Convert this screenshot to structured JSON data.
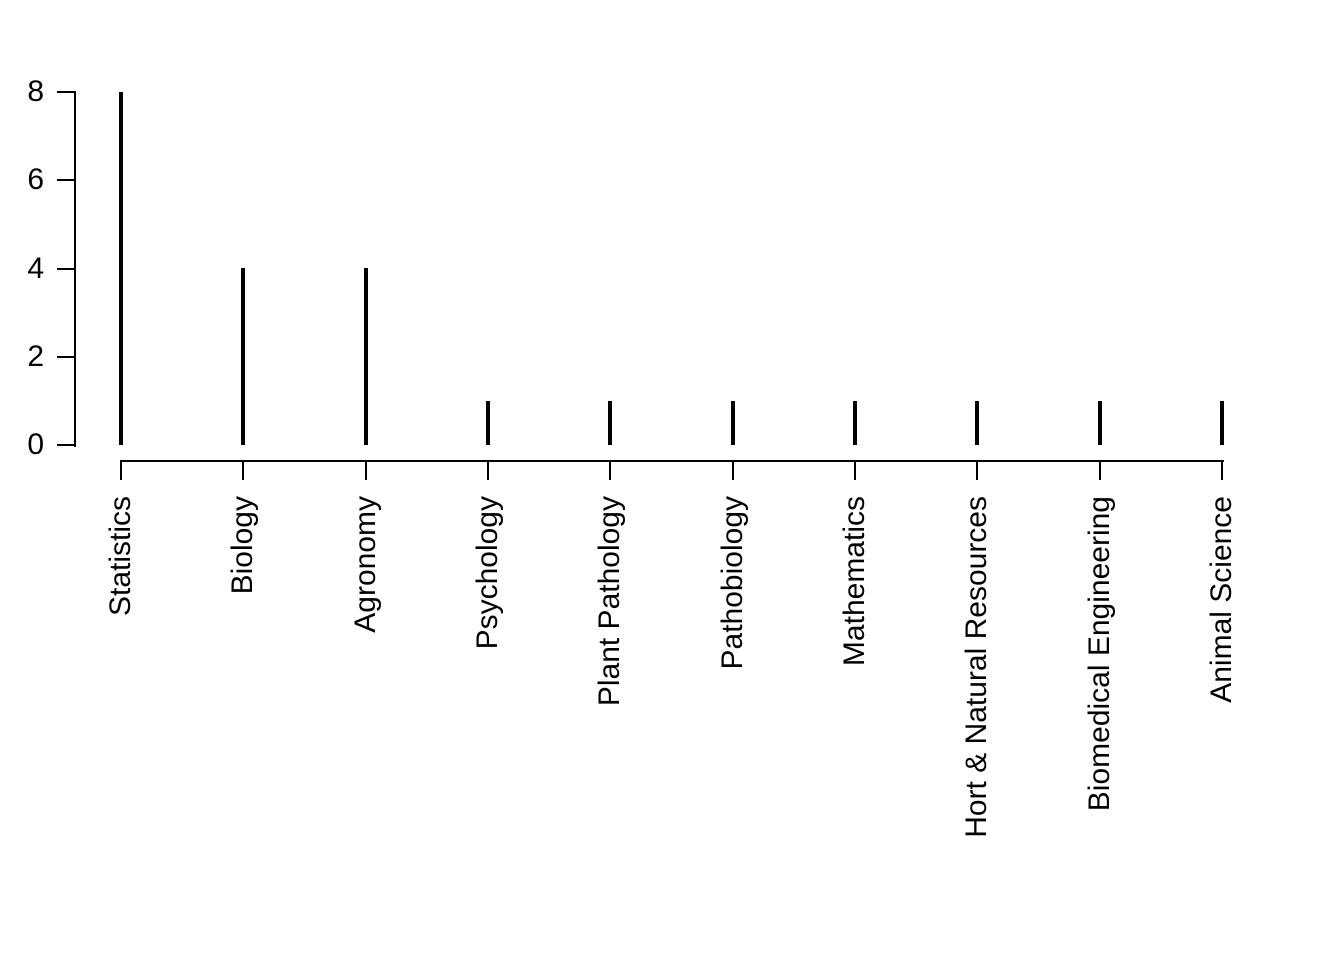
{
  "chart_data": {
    "type": "bar",
    "variant": "spike",
    "title": "",
    "categories": [
      "Statistics",
      "Biology",
      "Agronomy",
      "Psychology",
      "Plant Pathology",
      "Pathobiology",
      "Mathematics",
      "Hort & Natural Resources",
      "Biomedical Engineering",
      "Animal Science"
    ],
    "values": [
      8,
      4,
      4,
      1,
      1,
      1,
      1,
      1,
      1,
      1
    ],
    "xlabel": "",
    "ylabel": "",
    "ylim": [
      0,
      8
    ],
    "yticks": [
      0,
      2,
      4,
      6,
      8
    ],
    "grid": false,
    "legend": "none",
    "x_tick_label_rotation_deg": 90,
    "colors": {
      "spike": "#000000",
      "axis": "#000000",
      "text": "#000000",
      "background": "#ffffff"
    }
  }
}
